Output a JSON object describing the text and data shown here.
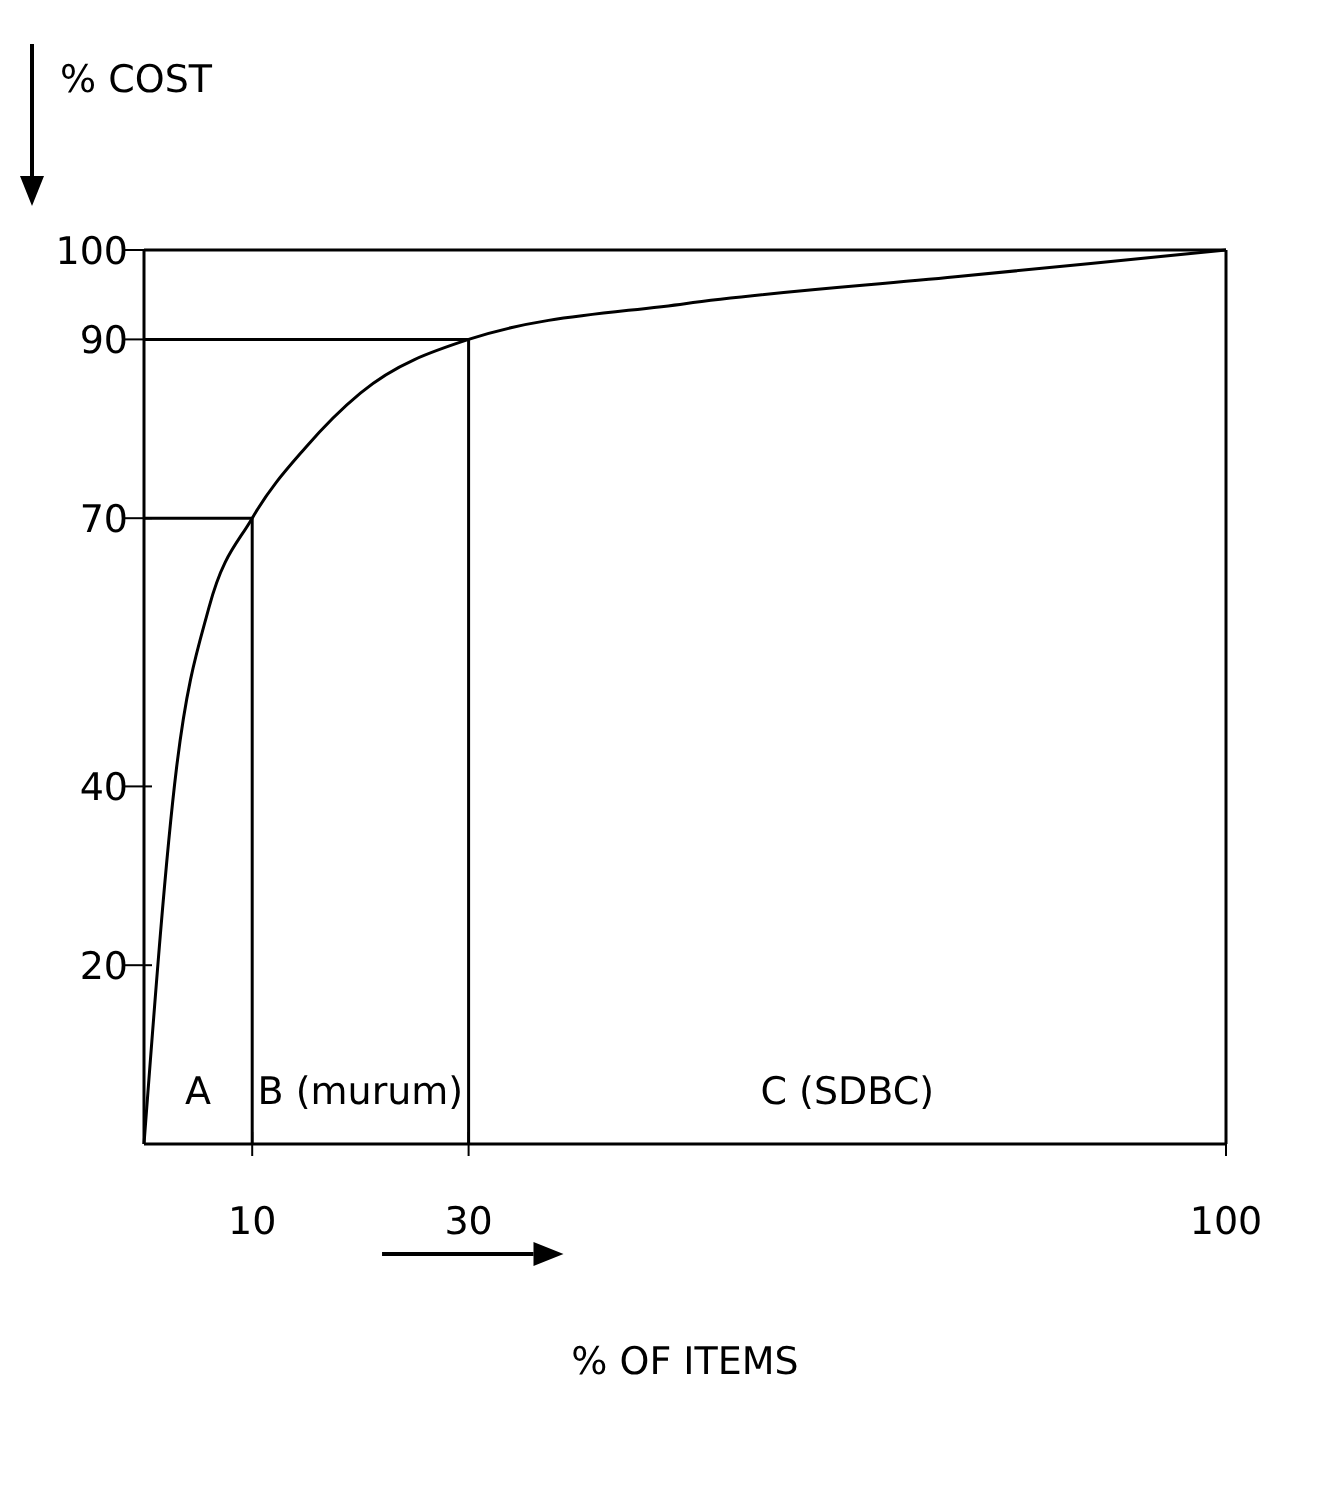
{
  "chart_data": {
    "type": "line",
    "xlabel": "% OF ITEMS",
    "ylabel": "% COST",
    "x": [
      0,
      3,
      6,
      10,
      15,
      20,
      30,
      50,
      75,
      100
    ],
    "series": [
      {
        "color": "#000000",
        "values": [
          0,
          42,
          60,
          70,
          78,
          84,
          90,
          94,
          97,
          100
        ]
      }
    ],
    "xlim": [
      0,
      100
    ],
    "ylim": [
      0,
      100
    ],
    "xticks": [
      10,
      30,
      100
    ],
    "yticks": [
      20,
      40,
      70,
      90,
      100
    ],
    "grid": false,
    "marker": "none",
    "line_style": "solid",
    "ref_lines": [
      {
        "axis": "x",
        "value": 10
      },
      {
        "axis": "x",
        "value": 30
      },
      {
        "axis": "y",
        "value": 70
      },
      {
        "axis": "y",
        "value": 90
      }
    ],
    "annotations": [
      "A",
      "B (murum)",
      "C (SDBC)"
    ]
  }
}
